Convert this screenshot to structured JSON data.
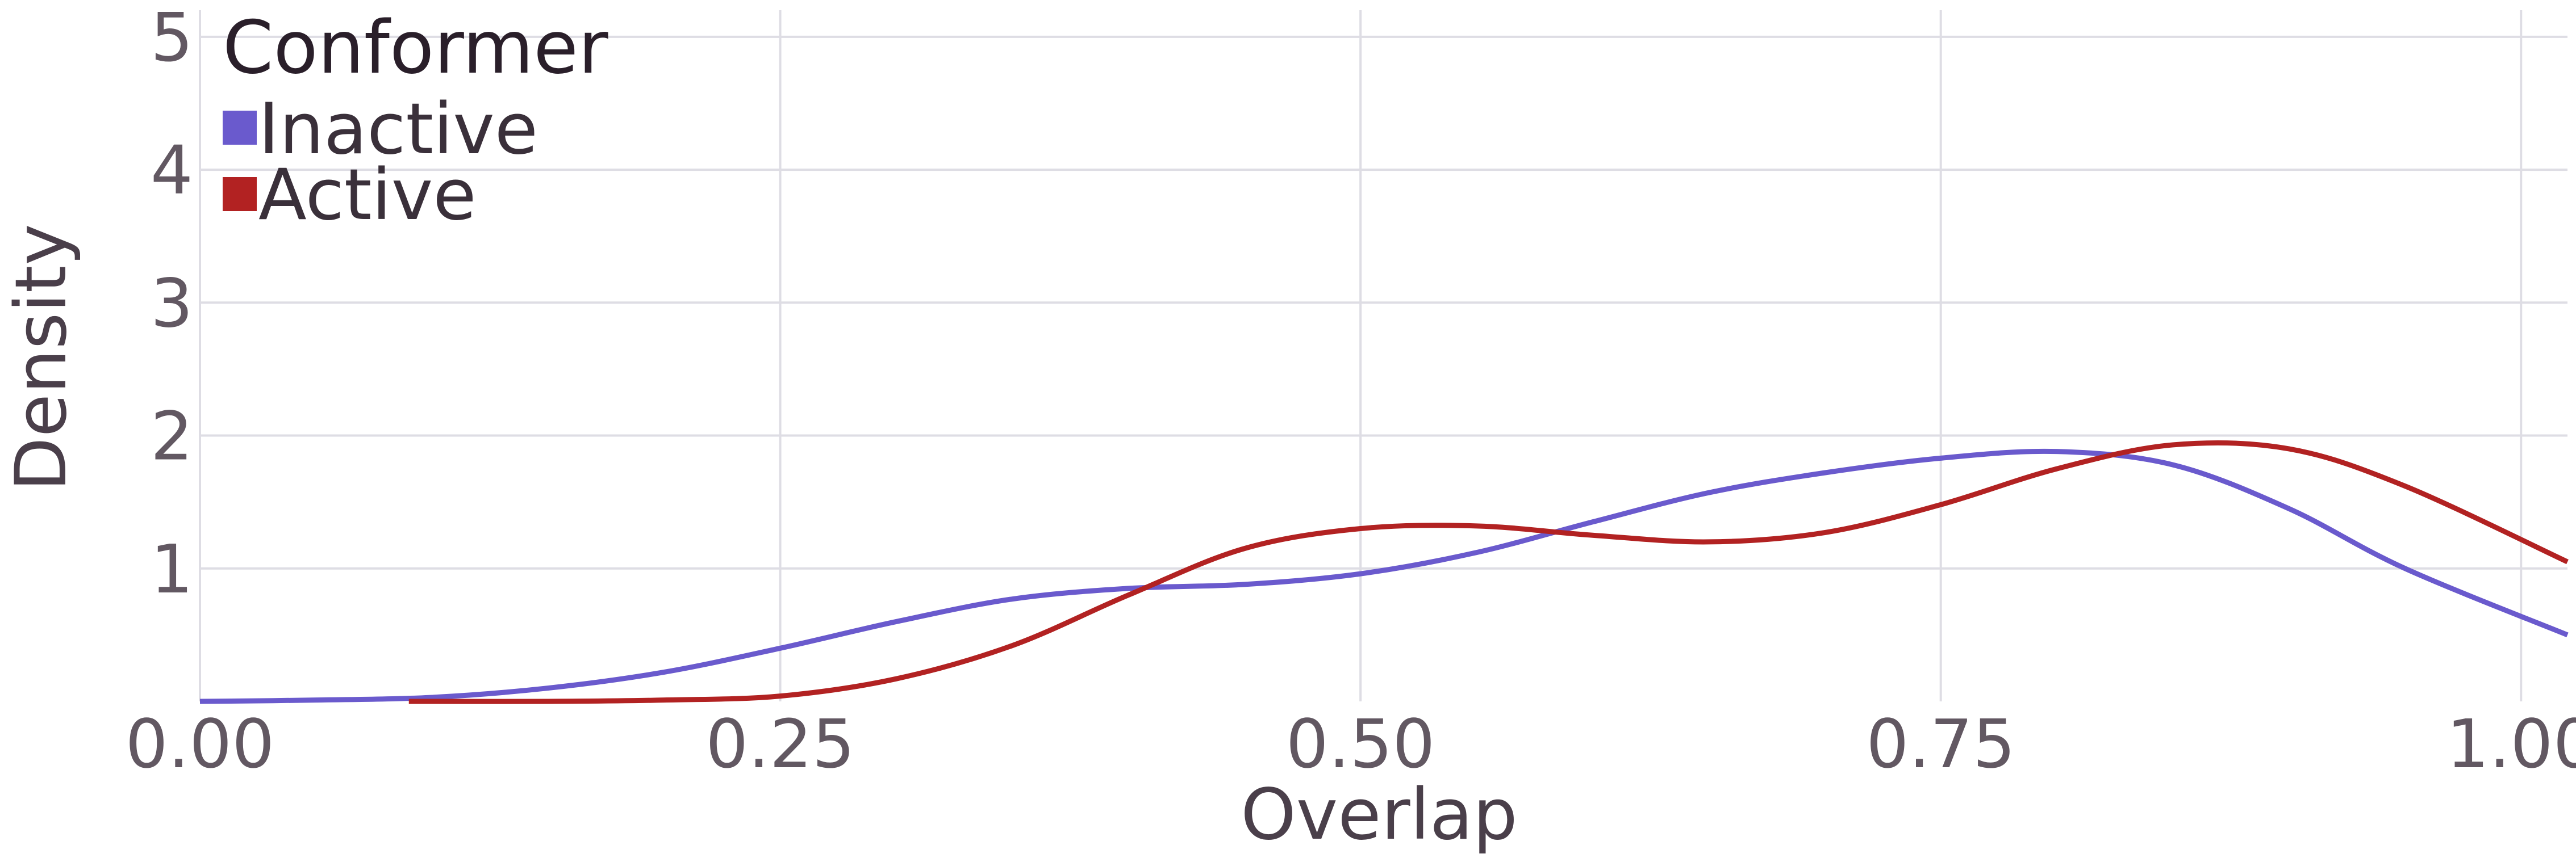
{
  "chart_data": {
    "type": "line",
    "subtype": "density",
    "xlabel": "Overlap",
    "ylabel": "Density",
    "xlim": [
      0,
      1.02
    ],
    "ylim": [
      0,
      5.2
    ],
    "x_ticks": [
      0,
      0.25,
      0.5,
      0.75,
      1.0
    ],
    "x_tick_labels": [
      "0.00",
      "0.25",
      "0.50",
      "0.75",
      "1.00"
    ],
    "y_ticks": [
      1,
      2,
      3,
      4,
      5
    ],
    "y_tick_labels": [
      "1",
      "2",
      "3",
      "4",
      "5"
    ],
    "grid": true,
    "legend": {
      "title": "Conformer",
      "position": "top-left"
    },
    "series": [
      {
        "name": "Inactive",
        "color": "#6a5acd",
        "x": [
          0.0,
          0.05,
          0.1,
          0.15,
          0.2,
          0.25,
          0.3,
          0.35,
          0.4,
          0.45,
          0.5,
          0.55,
          0.6,
          0.65,
          0.7,
          0.75,
          0.8,
          0.85,
          0.9,
          0.95,
          1.02
        ],
        "y": [
          0.0,
          0.01,
          0.03,
          0.1,
          0.22,
          0.4,
          0.6,
          0.77,
          0.85,
          0.88,
          0.96,
          1.12,
          1.35,
          1.57,
          1.72,
          1.83,
          1.88,
          1.78,
          1.45,
          1.0,
          0.5
        ]
      },
      {
        "name": "Active",
        "color": "#b22222",
        "x": [
          0.09,
          0.15,
          0.2,
          0.25,
          0.3,
          0.35,
          0.4,
          0.45,
          0.5,
          0.55,
          0.6,
          0.65,
          0.7,
          0.75,
          0.8,
          0.85,
          0.9,
          0.95,
          1.02
        ],
        "y": [
          0.0,
          0.0,
          0.01,
          0.04,
          0.17,
          0.42,
          0.8,
          1.15,
          1.3,
          1.32,
          1.25,
          1.2,
          1.27,
          1.48,
          1.75,
          1.93,
          1.9,
          1.62,
          1.05
        ]
      }
    ]
  }
}
